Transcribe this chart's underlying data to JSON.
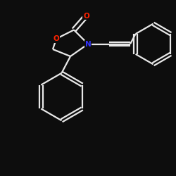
{
  "bg_color": "#0d0d0d",
  "line_color": "#e8e8e8",
  "N_color": "#3333ff",
  "O_color": "#ff2200",
  "atom_bg": "#0d0d0d",
  "line_width": 1.6,
  "figsize": [
    2.5,
    2.5
  ],
  "dpi": 100,
  "xlim": [
    0,
    10
  ],
  "ylim": [
    0,
    10
  ]
}
